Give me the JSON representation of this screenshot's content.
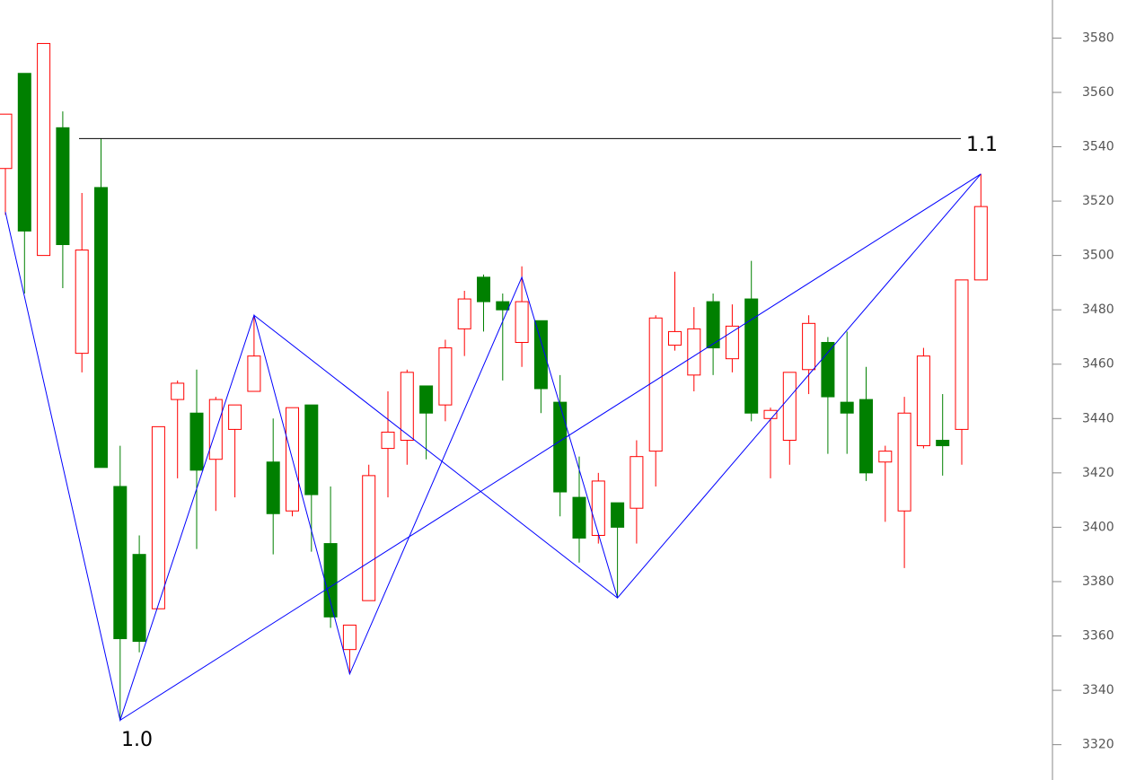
{
  "chart_data": {
    "type": "candlestick",
    "open": [
      3532,
      3567,
      3500,
      3547,
      3464,
      3525,
      3415,
      3390,
      3370,
      3447,
      3442,
      3425,
      3436,
      3450,
      3424,
      3406,
      3445,
      3394,
      3355,
      3373,
      3429,
      3432,
      3452,
      3445,
      3473,
      3492,
      3483,
      3468,
      3476,
      3446,
      3411,
      3397,
      3409,
      3407,
      3428,
      3467,
      3456,
      3483,
      3462,
      3484,
      3440,
      3432,
      3458,
      3468,
      3446,
      3447,
      3424,
      3406,
      3430,
      3432,
      3436,
      3491
    ],
    "high": [
      3552,
      3567,
      3578,
      3553,
      3523,
      3543,
      3430,
      3397,
      3437,
      3454,
      3458,
      3448,
      3445,
      3478,
      3440,
      3444,
      3445,
      3415,
      3364,
      3423,
      3450,
      3458,
      3452,
      3469,
      3487,
      3493,
      3486,
      3496,
      3476,
      3456,
      3426,
      3420,
      3409,
      3432,
      3478,
      3494,
      3481,
      3486,
      3482,
      3498,
      3444,
      3457,
      3478,
      3470,
      3472,
      3459,
      3430,
      3448,
      3466,
      3449,
      3491,
      3530
    ],
    "low": [
      3515,
      3486,
      3500,
      3488,
      3457,
      3422,
      3329,
      3354,
      3370,
      3418,
      3392,
      3406,
      3411,
      3450,
      3390,
      3404,
      3391,
      3363,
      3346,
      3373,
      3411,
      3423,
      3425,
      3439,
      3463,
      3472,
      3454,
      3459,
      3442,
      3404,
      3387,
      3394,
      3374,
      3394,
      3415,
      3465,
      3450,
      3456,
      3457,
      3439,
      3418,
      3423,
      3449,
      3427,
      3427,
      3417,
      3402,
      3385,
      3429,
      3419,
      3423,
      3491
    ],
    "close": [
      3552,
      3509,
      3578,
      3504,
      3502,
      3422,
      3359,
      3358,
      3437,
      3453,
      3421,
      3447,
      3445,
      3463,
      3405,
      3444,
      3412,
      3367,
      3364,
      3419,
      3435,
      3457,
      3442,
      3466,
      3484,
      3483,
      3480,
      3483,
      3451,
      3413,
      3396,
      3417,
      3400,
      3426,
      3477,
      3472,
      3473,
      3466,
      3474,
      3442,
      3443,
      3457,
      3475,
      3448,
      3442,
      3420,
      3428,
      3442,
      3463,
      3430,
      3491,
      3518
    ],
    "up_color": "#ff0000",
    "down_color": "#008000",
    "pattern": {
      "color": "#0000ff",
      "x": [
        0,
        6,
        13,
        18,
        27,
        32,
        51
      ],
      "values": [
        3516,
        3329,
        3478,
        3346,
        3492,
        3374,
        3530
      ]
    },
    "chords": [
      {
        "x": [
          6,
          51
        ],
        "values": [
          3329,
          3530
        ]
      },
      {
        "x": [
          13,
          32
        ],
        "values": [
          3478,
          3374
        ]
      }
    ],
    "level": {
      "value": 3543,
      "label": "1.1"
    },
    "low_label": "1.0",
    "ylim": [
      3307,
      3594
    ],
    "yticks": [
      3320,
      3340,
      3360,
      3380,
      3400,
      3420,
      3440,
      3460,
      3480,
      3500,
      3520,
      3540,
      3560,
      3580
    ]
  }
}
